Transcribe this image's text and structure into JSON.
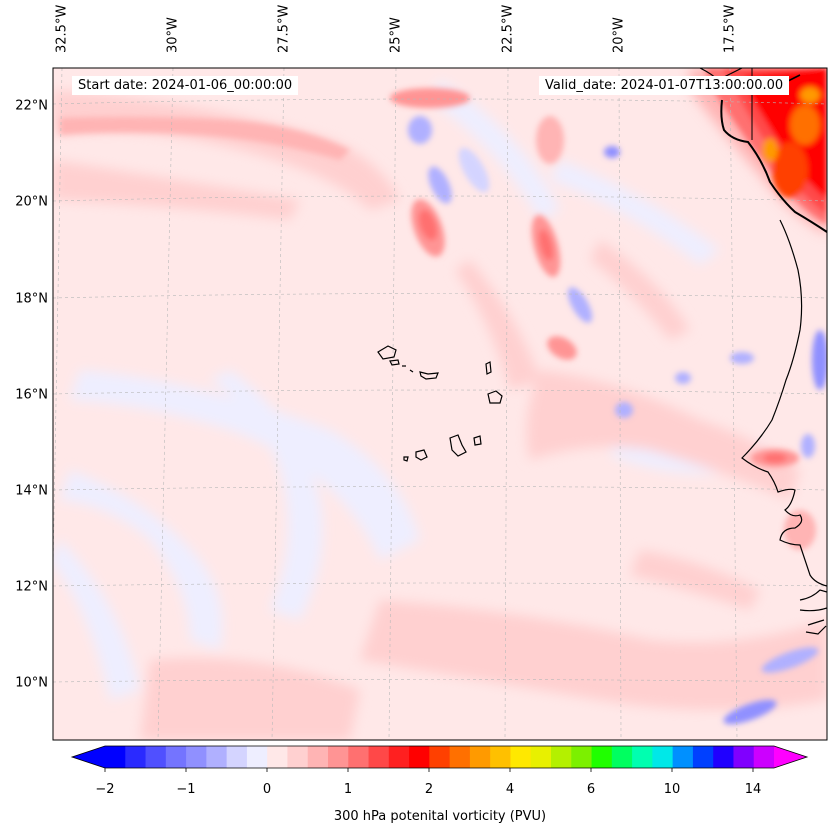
{
  "header": {
    "start_date": "Start date: 2024-01-06_00:00:00",
    "valid_date": "Valid_date: 2024-01-07T13:00:00.00"
  },
  "map": {
    "projection": "lambert-conformal",
    "extent": {
      "lon_min": -32.5,
      "lon_max": -15.5,
      "lat_min": 8.8,
      "lat_max": 22.8
    },
    "gridlines": true,
    "lon_ticks": [
      "32.5°W",
      "30°W",
      "27.5°W",
      "25°W",
      "22.5°W",
      "20°W",
      "17.5°W"
    ],
    "lat_ticks": [
      "22°N",
      "20°N",
      "18°N",
      "16°N",
      "14°N",
      "12°N",
      "10°N"
    ],
    "features": [
      "Cape Verde islands",
      "West African coastline",
      "Canary/Western Sahara region"
    ]
  },
  "colorbar": {
    "label": "300 hPa potenital vorticity (PVU)",
    "tick_labels": [
      "−2",
      "−1",
      "0",
      "1",
      "2",
      "4",
      "6",
      "10",
      "14"
    ],
    "extend": "both",
    "colors": [
      "#0000ff",
      "#2a2aff",
      "#5050ff",
      "#7474ff",
      "#9090ff",
      "#b0b0ff",
      "#d4d4ff",
      "#eeeeff",
      "#ffe8e8",
      "#ffd0d0",
      "#ffb4b4",
      "#ff9494",
      "#ff7070",
      "#ff4848",
      "#ff2020",
      "#ff0000",
      "#ff4000",
      "#ff7000",
      "#ff9a00",
      "#ffc000",
      "#ffe800",
      "#e8f000",
      "#b4f000",
      "#7cf000",
      "#20ff00",
      "#00ff60",
      "#00ffb0",
      "#00e8e8",
      "#0090ff",
      "#0040ff",
      "#2000ff",
      "#8000ff",
      "#cc00ff"
    ],
    "min_color": "#0000ff",
    "max_color": "#ff00ff"
  }
}
